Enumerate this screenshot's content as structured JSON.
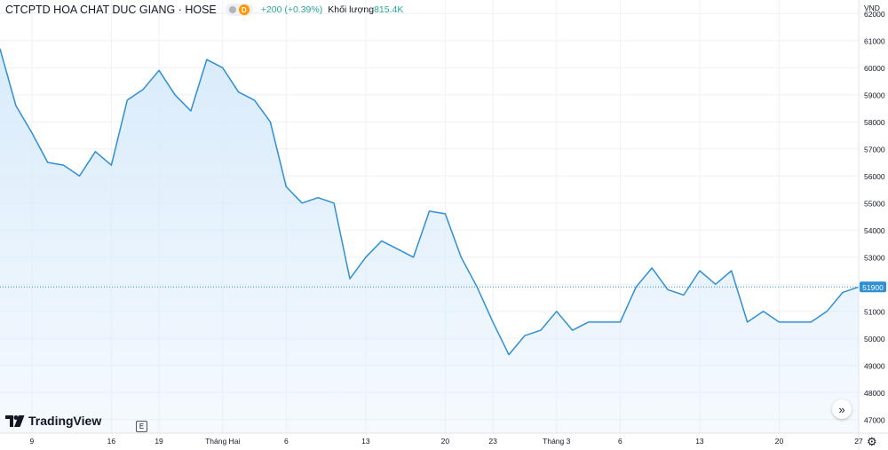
{
  "header": {
    "title": "CTCPTD HOA CHAT DUC GIANG · HOSE",
    "resolution": "D",
    "change": "+200 (+0.39%)",
    "volume_label": "Khối lượng",
    "volume_value": "815.4K"
  },
  "currency": "VND",
  "last_price_label": "51900",
  "logo_text": "TradingView",
  "e_label": "E",
  "scroll_glyph": "»",
  "gear_glyph": "⚙",
  "colors": {
    "line": "#2f8fd4",
    "fill": "#d9ebfb",
    "grid": "#eef1f5",
    "text": "#131722",
    "up": "#26a69a"
  },
  "chart_data": {
    "type": "area",
    "ylim": [
      46500,
      62500
    ],
    "y_ticks": [
      47000,
      48000,
      49000,
      50000,
      51000,
      52000,
      53000,
      54000,
      55000,
      56000,
      57000,
      58000,
      59000,
      60000,
      61000,
      62000
    ],
    "x_ticks": [
      "9",
      "16",
      "19",
      "Tháng Hai",
      "6",
      "13",
      "20",
      "23",
      "Tháng 3",
      "6",
      "13",
      "20",
      "27"
    ],
    "x_tick_index": [
      2,
      7,
      10,
      14,
      18,
      23,
      28,
      31,
      35,
      39,
      44,
      49,
      54
    ],
    "values": [
      60700,
      58600,
      57600,
      56500,
      56400,
      56000,
      56900,
      56400,
      58800,
      59200,
      59900,
      59000,
      58400,
      60300,
      60000,
      59100,
      58800,
      58000,
      55600,
      55000,
      55200,
      55000,
      52200,
      53000,
      53600,
      53300,
      53000,
      54700,
      54600,
      53000,
      51900,
      50600,
      49400,
      50100,
      50300,
      51000,
      50300,
      50600,
      50600,
      50600,
      51900,
      52600,
      51800,
      51600,
      52500,
      52000,
      52500,
      50600,
      51000,
      50600,
      50600,
      50600,
      51000,
      51700,
      51900
    ],
    "last_value": 51900
  }
}
